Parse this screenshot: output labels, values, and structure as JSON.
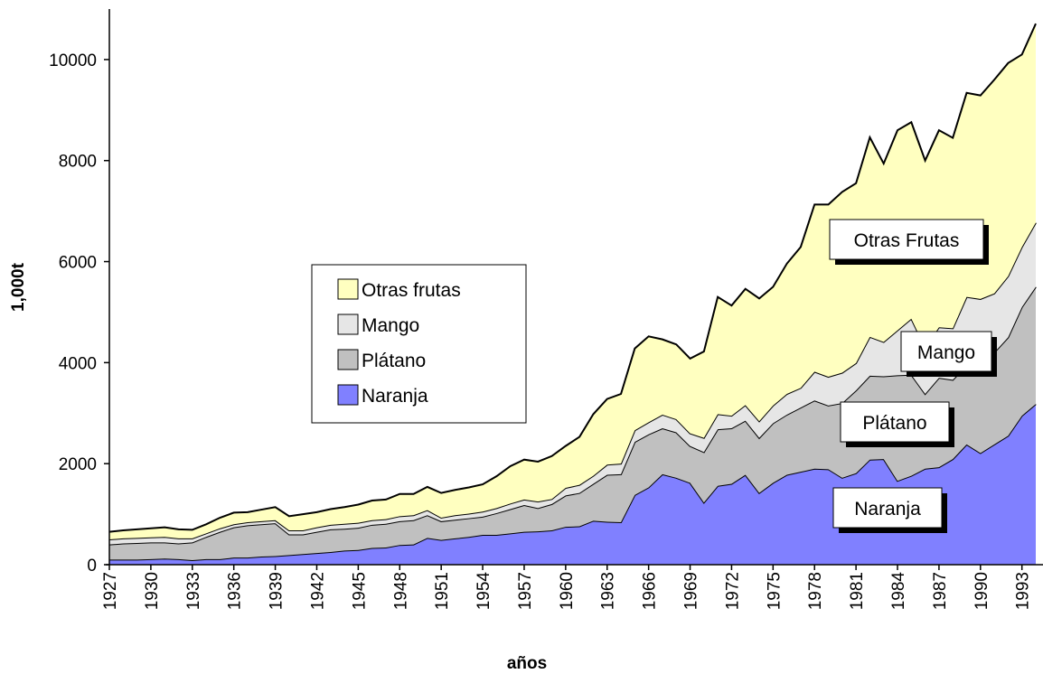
{
  "chart_data": {
    "type": "stacked-area",
    "x_label": "años",
    "y_label": "1,000t",
    "x": [
      1927,
      1928,
      1929,
      1930,
      1931,
      1932,
      1933,
      1934,
      1935,
      1936,
      1937,
      1938,
      1939,
      1940,
      1941,
      1942,
      1943,
      1944,
      1945,
      1946,
      1947,
      1948,
      1949,
      1950,
      1951,
      1952,
      1953,
      1954,
      1955,
      1956,
      1957,
      1958,
      1959,
      1960,
      1961,
      1962,
      1963,
      1964,
      1965,
      1966,
      1967,
      1968,
      1969,
      1970,
      1971,
      1972,
      1973,
      1974,
      1975,
      1976,
      1977,
      1978,
      1979,
      1980,
      1981,
      1982,
      1983,
      1984,
      1985,
      1986,
      1987,
      1988,
      1989,
      1990,
      1991,
      1992,
      1993,
      1994
    ],
    "series": [
      {
        "name": "Naranja",
        "color": "#8080ff",
        "values": [
          100,
          100,
          100,
          110,
          120,
          110,
          90,
          110,
          110,
          140,
          140,
          160,
          170,
          190,
          210,
          230,
          250,
          280,
          290,
          330,
          340,
          390,
          400,
          530,
          490,
          520,
          550,
          590,
          590,
          620,
          650,
          660,
          680,
          750,
          760,
          870,
          850,
          840,
          1380,
          1530,
          1790,
          1720,
          1620,
          1230,
          1560,
          1600,
          1780,
          1420,
          1620,
          1780,
          1840,
          1900,
          1890,
          1720,
          1810,
          2080,
          2090,
          1660,
          1760,
          1900,
          1930,
          2090,
          2380,
          2210,
          2380,
          2550,
          2950,
          3180
        ]
      },
      {
        "name": "Plátano",
        "color": "#c0c0c0",
        "values": [
          300,
          320,
          330,
          330,
          320,
          310,
          350,
          440,
          540,
          600,
          640,
          640,
          650,
          410,
          390,
          420,
          450,
          430,
          440,
          460,
          470,
          470,
          480,
          450,
          370,
          370,
          370,
          360,
          430,
          480,
          530,
          460,
          520,
          620,
          660,
          730,
          930,
          950,
          1050,
          1050,
          910,
          900,
          730,
          1000,
          1120,
          1100,
          1070,
          1090,
          1180,
          1190,
          1270,
          1350,
          1260,
          1480,
          1640,
          1660,
          1640,
          2090,
          2000,
          1480,
          1770,
          1570,
          1570,
          1890,
          1820,
          1950,
          2150,
          2320
        ]
      },
      {
        "name": "Mango",
        "color": "#e6e6e6",
        "values": [
          100,
          100,
          100,
          100,
          110,
          100,
          80,
          70,
          70,
          60,
          60,
          60,
          60,
          80,
          80,
          90,
          90,
          100,
          100,
          90,
          90,
          100,
          100,
          100,
          70,
          90,
          90,
          100,
          100,
          110,
          110,
          130,
          100,
          150,
          160,
          160,
          200,
          210,
          230,
          240,
          270,
          260,
          250,
          280,
          300,
          250,
          310,
          330,
          350,
          410,
          390,
          570,
          570,
          600,
          540,
          770,
          680,
          890,
          1110,
          920,
          1000,
          1020,
          1350,
          1160,
          1170,
          1210,
          1190,
          1270
        ]
      },
      {
        "name": "Otras frutas",
        "color": "#ffffc0",
        "values": [
          150,
          160,
          170,
          180,
          190,
          180,
          170,
          180,
          210,
          230,
          200,
          230,
          260,
          280,
          320,
          300,
          310,
          330,
          360,
          390,
          390,
          440,
          420,
          460,
          490,
          500,
          520,
          540,
          630,
          740,
          790,
          790,
          850,
          830,
          950,
          1220,
          1300,
          1380,
          1620,
          1700,
          1490,
          1480,
          1480,
          1710,
          2320,
          2180,
          2300,
          2430,
          2350,
          2580,
          2790,
          3310,
          3410,
          3580,
          3560,
          3950,
          3530,
          3960,
          3890,
          3700,
          3900,
          3770,
          4040,
          4030,
          4230,
          4220,
          3810,
          3940
        ]
      }
    ],
    "annotations": [
      "Otras Frutas",
      "Mango",
      "Plátano",
      "Naranja"
    ],
    "xlim": [
      1927,
      1994
    ],
    "xticks": [
      1927,
      1930,
      1933,
      1936,
      1939,
      1942,
      1945,
      1948,
      1951,
      1954,
      1957,
      1960,
      1963,
      1966,
      1969,
      1972,
      1975,
      1978,
      1981,
      1984,
      1987,
      1990,
      1993
    ],
    "ylim": [
      0,
      11000
    ],
    "yticks": [
      0,
      2000,
      4000,
      6000,
      8000,
      10000
    ],
    "grid": false,
    "legend": "center-left"
  }
}
